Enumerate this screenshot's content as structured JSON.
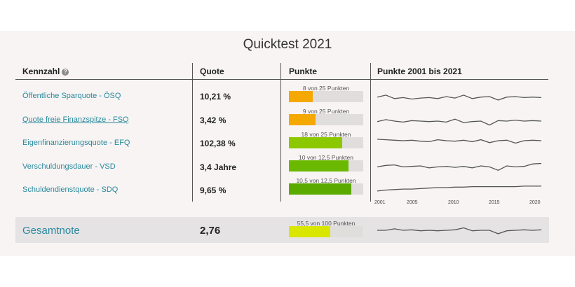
{
  "title": "Quicktest 2021",
  "headers": {
    "kennzahl": "Kennzahl",
    "help_icon": "?",
    "quote": "Quote",
    "punkte": "Punkte",
    "trend": "Punkte 2001 bis 2021"
  },
  "rows": [
    {
      "label": "Öffentliche Sparquote - ÖSQ",
      "quote": "10,21 %",
      "points_text": "8 von 25 Punkten",
      "points": 8,
      "max": 25,
      "color": "#f5a800",
      "trend": [
        0.55,
        0.35,
        0.7,
        0.6,
        0.75,
        0.65,
        0.6,
        0.7,
        0.5,
        0.65,
        0.35,
        0.7,
        0.55,
        0.5,
        0.85,
        0.55,
        0.5,
        0.6,
        0.55,
        0.6
      ]
    },
    {
      "label": "Quote freie Finanzspitze - FSQ",
      "quote": "3,42 %",
      "points_text": "9 von 25 Punkten",
      "points": 9,
      "max": 25,
      "color": "#f5a800",
      "trend": [
        0.55,
        0.35,
        0.5,
        0.6,
        0.45,
        0.5,
        0.55,
        0.5,
        0.6,
        0.3,
        0.65,
        0.55,
        0.5,
        0.9,
        0.45,
        0.5,
        0.4,
        0.5,
        0.45,
        0.5
      ]
    },
    {
      "label": "Eigenfinanzierungsquote - EFQ",
      "quote": "102,38 %",
      "points_text": "18 von 25 Punkten",
      "points": 18,
      "max": 25,
      "color": "#8cc800",
      "trend": [
        0.35,
        0.4,
        0.45,
        0.5,
        0.45,
        0.55,
        0.6,
        0.4,
        0.5,
        0.55,
        0.45,
        0.6,
        0.4,
        0.7,
        0.5,
        0.45,
        0.75,
        0.5,
        0.45,
        0.5
      ]
    },
    {
      "label": "Verschuldungsdauer - VSD",
      "quote": "3,4 Jahre",
      "points_text": "10 von 12,5 Punkten",
      "points": 10,
      "max": 12.5,
      "color": "#6ab800",
      "trend": [
        0.6,
        0.45,
        0.4,
        0.6,
        0.55,
        0.5,
        0.7,
        0.6,
        0.55,
        0.65,
        0.55,
        0.7,
        0.5,
        0.6,
        0.95,
        0.5,
        0.6,
        0.55,
        0.3,
        0.25
      ]
    },
    {
      "label": "Schuldendienstquote - SDQ",
      "quote": "9,65 %",
      "points_text": "10,5 von 12,5 Punkten",
      "points": 10.5,
      "max": 12.5,
      "color": "#5aaa00",
      "trend": [
        0.85,
        0.75,
        0.7,
        0.65,
        0.65,
        0.6,
        0.55,
        0.5,
        0.5,
        0.45,
        0.45,
        0.4,
        0.4,
        0.4,
        0.4,
        0.4,
        0.4,
        0.35,
        0.35,
        0.35
      ]
    }
  ],
  "axis_years": [
    "2001",
    "2005",
    "2010",
    "2015",
    "2020"
  ],
  "total": {
    "label": "Gesamtnote",
    "quote": "2,76",
    "points_text": "55,5 von 100 Punkten",
    "points": 55.5,
    "max": 100,
    "color": "#d8e600",
    "trend": [
      0.5,
      0.5,
      0.35,
      0.5,
      0.45,
      0.55,
      0.5,
      0.55,
      0.5,
      0.45,
      0.25,
      0.55,
      0.5,
      0.5,
      0.85,
      0.55,
      0.5,
      0.45,
      0.5,
      0.45
    ]
  },
  "colors": {
    "link": "#2a8a9e",
    "track": "#e0dddd"
  }
}
